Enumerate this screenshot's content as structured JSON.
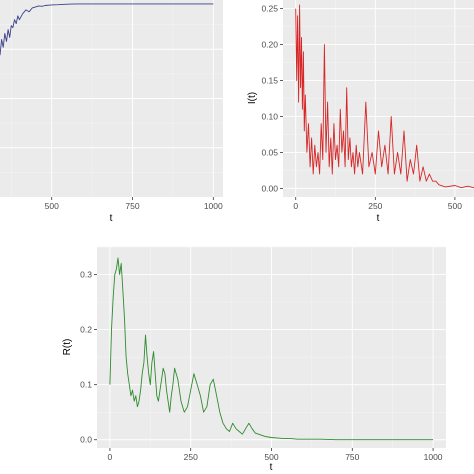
{
  "chart_data": [
    {
      "type": "line",
      "name": "top-left",
      "xlabel": "t",
      "ylabel": "",
      "xlim": [
        340,
        1030
      ],
      "ylim": [
        0,
        1
      ],
      "xticks": [
        500,
        750,
        1000
      ],
      "yticks": [],
      "grid": true,
      "color": "#3b3f8c",
      "series": [
        {
          "values_note": "",
          "x": [
            340,
            345,
            350,
            355,
            360,
            365,
            370,
            375,
            380,
            385,
            390,
            395,
            400,
            410,
            420,
            430,
            440,
            450,
            460,
            470,
            480,
            500,
            520,
            540,
            560,
            580,
            600,
            650,
            700,
            800,
            900,
            1000
          ],
          "y": [
            0.72,
            0.8,
            0.76,
            0.83,
            0.79,
            0.85,
            0.81,
            0.87,
            0.86,
            0.9,
            0.88,
            0.92,
            0.9,
            0.93,
            0.95,
            0.94,
            0.96,
            0.965,
            0.97,
            0.968,
            0.972,
            0.975,
            0.976,
            0.978,
            0.979,
            0.98,
            0.98,
            0.98,
            0.98,
            0.98,
            0.98,
            0.98
          ]
        }
      ]
    },
    {
      "type": "line",
      "name": "top-right",
      "xlabel": "t",
      "ylabel": "I(t)",
      "xlim": [
        -40,
        560
      ],
      "ylim": [
        -0.012,
        0.262
      ],
      "xticks": [
        0,
        250,
        500
      ],
      "yticks": [
        0.0,
        0.05,
        0.1,
        0.15,
        0.2,
        0.25
      ],
      "ytick_labels": [
        "0.00",
        "0.05",
        "0.10",
        "0.15",
        "0.20",
        "0.25"
      ],
      "grid": true,
      "color": "#d62728",
      "series": [
        {
          "x": [
            0,
            3,
            6,
            9,
            12,
            15,
            18,
            21,
            24,
            27,
            30,
            35,
            40,
            45,
            50,
            55,
            60,
            65,
            70,
            75,
            80,
            85,
            90,
            95,
            100,
            105,
            110,
            115,
            120,
            125,
            130,
            135,
            140,
            145,
            150,
            155,
            160,
            165,
            170,
            175,
            180,
            185,
            190,
            195,
            200,
            210,
            220,
            230,
            240,
            250,
            260,
            270,
            280,
            290,
            300,
            310,
            320,
            330,
            340,
            350,
            360,
            370,
            380,
            390,
            400,
            410,
            420,
            430,
            440,
            450,
            470,
            500,
            520,
            540,
            560
          ],
          "y": [
            0.25,
            0.15,
            0.24,
            0.12,
            0.255,
            0.14,
            0.21,
            0.11,
            0.19,
            0.08,
            0.13,
            0.05,
            0.09,
            0.03,
            0.07,
            0.02,
            0.06,
            0.03,
            0.05,
            0.02,
            0.09,
            0.04,
            0.2,
            0.05,
            0.12,
            0.03,
            0.07,
            0.02,
            0.09,
            0.04,
            0.06,
            0.03,
            0.11,
            0.05,
            0.08,
            0.03,
            0.14,
            0.04,
            0.07,
            0.03,
            0.05,
            0.02,
            0.06,
            0.03,
            0.05,
            0.02,
            0.12,
            0.03,
            0.05,
            0.02,
            0.08,
            0.03,
            0.06,
            0.02,
            0.1,
            0.02,
            0.05,
            0.02,
            0.08,
            0.01,
            0.04,
            0.02,
            0.06,
            0.01,
            0.03,
            0.01,
            0.02,
            0.01,
            0.01,
            0.005,
            0.002,
            0.004,
            0.001,
            0.003,
            0.001
          ]
        }
      ]
    },
    {
      "type": "line",
      "name": "bottom",
      "xlabel": "t",
      "ylabel": "R(t)",
      "xlim": [
        -40,
        1040
      ],
      "ylim": [
        -0.015,
        0.35
      ],
      "xticks": [
        0,
        250,
        500,
        750,
        1000
      ],
      "yticks": [
        0.0,
        0.1,
        0.2,
        0.3
      ],
      "ytick_labels": [
        "0.0",
        "0.1",
        "0.2",
        "0.3"
      ],
      "grid": true,
      "color": "#2e8b2e",
      "series": [
        {
          "x": [
            0,
            5,
            10,
            15,
            20,
            25,
            30,
            35,
            40,
            45,
            50,
            55,
            60,
            65,
            70,
            75,
            80,
            85,
            90,
            95,
            100,
            105,
            110,
            115,
            120,
            125,
            130,
            135,
            140,
            145,
            150,
            155,
            160,
            165,
            170,
            175,
            180,
            185,
            190,
            195,
            200,
            210,
            220,
            230,
            240,
            250,
            260,
            270,
            280,
            290,
            300,
            310,
            320,
            330,
            340,
            350,
            360,
            370,
            380,
            390,
            400,
            410,
            420,
            430,
            440,
            450,
            460,
            470,
            480,
            490,
            500,
            520,
            540,
            560,
            580,
            600,
            650,
            700,
            800,
            900,
            1000
          ],
          "y": [
            0.1,
            0.2,
            0.26,
            0.3,
            0.31,
            0.33,
            0.3,
            0.32,
            0.27,
            0.22,
            0.15,
            0.12,
            0.1,
            0.08,
            0.09,
            0.07,
            0.08,
            0.06,
            0.07,
            0.09,
            0.12,
            0.14,
            0.19,
            0.15,
            0.12,
            0.1,
            0.14,
            0.16,
            0.12,
            0.08,
            0.07,
            0.09,
            0.11,
            0.13,
            0.12,
            0.09,
            0.07,
            0.05,
            0.08,
            0.1,
            0.13,
            0.11,
            0.07,
            0.05,
            0.06,
            0.09,
            0.12,
            0.1,
            0.08,
            0.05,
            0.06,
            0.1,
            0.11,
            0.08,
            0.05,
            0.03,
            0.02,
            0.015,
            0.03,
            0.02,
            0.015,
            0.01,
            0.02,
            0.03,
            0.02,
            0.012,
            0.01,
            0.008,
            0.006,
            0.005,
            0.004,
            0.003,
            0.002,
            0.002,
            0.001,
            0.001,
            0.001,
            0.0,
            0.0,
            0.0,
            0.0
          ]
        }
      ]
    }
  ]
}
